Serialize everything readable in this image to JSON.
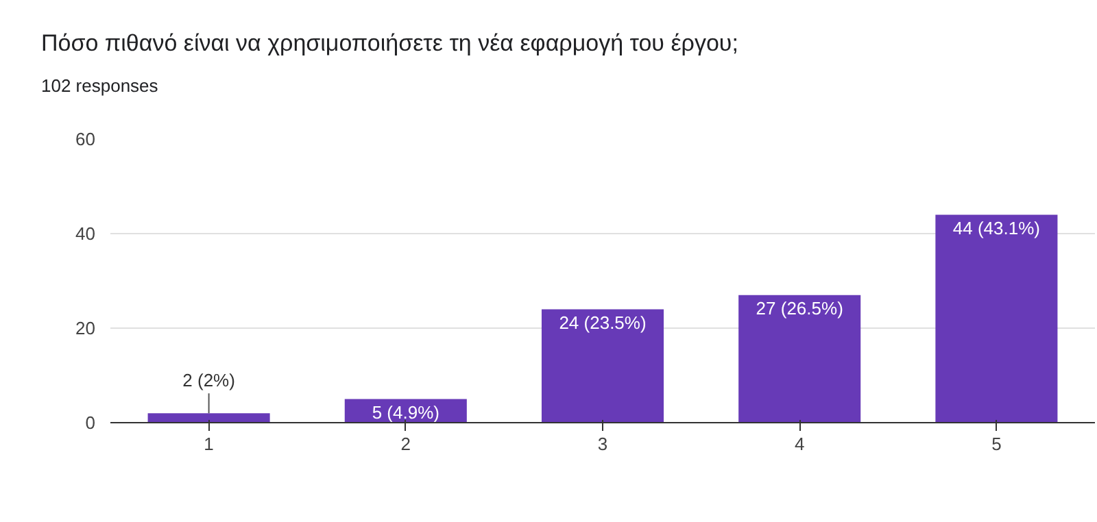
{
  "chart_data": {
    "type": "bar",
    "title": "Πόσο πιθανό είναι να χρησιμοποιήσετε τη νέα εφαρμογή του έργου;",
    "subtitle": "102 responses",
    "categories": [
      "1",
      "2",
      "3",
      "4",
      "5"
    ],
    "values": [
      2,
      5,
      24,
      27,
      44
    ],
    "value_labels": [
      "2 (2%)",
      "5 (4.9%)",
      "24 (23.5%)",
      "27 (26.5%)",
      "44 (43.1%)"
    ],
    "color": "#673ab7",
    "ylim": [
      0,
      60
    ],
    "yticks": [
      0,
      20,
      40,
      60
    ],
    "grid": "y"
  }
}
